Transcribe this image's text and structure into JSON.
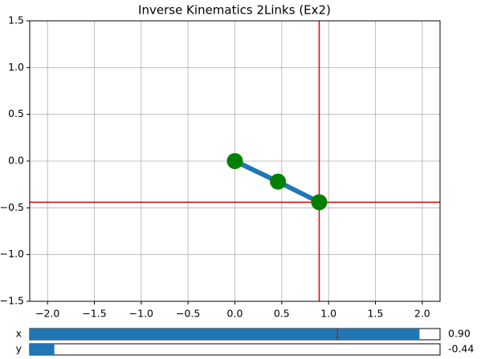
{
  "chart_data": {
    "type": "line",
    "title": "Inverse Kinematics 2Links (Ex2)",
    "xlim": [
      -2.19,
      2.19
    ],
    "ylim": [
      -1.5,
      1.5
    ],
    "xticks": [
      {
        "value": -2,
        "label": "−2.0"
      },
      {
        "value": -1.5,
        "label": "−1.5"
      },
      {
        "value": -1,
        "label": "−1.0"
      },
      {
        "value": -0.5,
        "label": "−0.5"
      },
      {
        "value": 0,
        "label": "0.0"
      },
      {
        "value": 0.5,
        "label": "0.5"
      },
      {
        "value": 1,
        "label": "1.0"
      },
      {
        "value": 1.5,
        "label": "1.5"
      },
      {
        "value": 2,
        "label": "2.0"
      }
    ],
    "yticks": [
      {
        "value": -1.5,
        "label": "−1.5"
      },
      {
        "value": -1,
        "label": "−1.0"
      },
      {
        "value": -0.5,
        "label": "−0.5"
      },
      {
        "value": 0,
        "label": "0.0"
      },
      {
        "value": 0.5,
        "label": "0.5"
      },
      {
        "value": 1,
        "label": "1.0"
      },
      {
        "value": 1.5,
        "label": "1.5"
      }
    ],
    "grid": true,
    "series": [
      {
        "color": "#1f77b4",
        "marker_color": "#008000",
        "x": [
          0,
          0.46,
          0.9
        ],
        "values": [
          0,
          -0.22,
          -0.44
        ]
      }
    ],
    "crosshair": {
      "x": 0.9,
      "y": -0.44,
      "color": "#e00000"
    }
  },
  "sliders": [
    {
      "label": "x",
      "value": 0.9,
      "value_label": "0.90",
      "range": [
        -1,
        1
      ],
      "initial": 0.5
    },
    {
      "label": "y",
      "value": -0.44,
      "value_label": "-0.44",
      "range": [
        -0.5,
        0.5
      ]
    }
  ]
}
